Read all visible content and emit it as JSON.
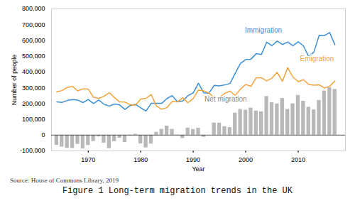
{
  "chart_data": {
    "type": "line",
    "x_label": "Year",
    "y_label": "Number of people",
    "source": "Source: House of Commons Library, 2019",
    "caption": "Figure 1 Long-term migration trends in the UK",
    "x": [
      1964,
      1965,
      1966,
      1967,
      1968,
      1969,
      1970,
      1971,
      1972,
      1973,
      1974,
      1975,
      1976,
      1977,
      1978,
      1979,
      1980,
      1981,
      1982,
      1983,
      1984,
      1985,
      1986,
      1987,
      1988,
      1989,
      1990,
      1991,
      1992,
      1993,
      1994,
      1995,
      1996,
      1997,
      1998,
      1999,
      2000,
      2001,
      2002,
      2003,
      2004,
      2005,
      2006,
      2007,
      2008,
      2009,
      2010,
      2011,
      2012,
      2013,
      2014,
      2015,
      2016,
      2017
    ],
    "series": [
      {
        "name": "Immigration",
        "type": "line",
        "color": "#3d8fd6",
        "values": [
          211000,
          207000,
          219000,
          225000,
          222000,
          206000,
          226000,
          200000,
          222000,
          196000,
          184000,
          197000,
          191000,
          163000,
          187000,
          195000,
          173000,
          153000,
          201000,
          202000,
          201000,
          232000,
          250000,
          212000,
          216000,
          250000,
          267000,
          329000,
          268000,
          266000,
          315000,
          312000,
          318000,
          327000,
          391000,
          454000,
          479000,
          481000,
          516000,
          511000,
          589000,
          567000,
          596000,
          574000,
          590000,
          567000,
          591000,
          566000,
          498000,
          526000,
          632000,
          631000,
          650000,
          572000
        ]
      },
      {
        "name": "Emigration",
        "type": "line",
        "color": "#f2a33a",
        "values": [
          275000,
          282000,
          302000,
          309000,
          280000,
          293000,
          291000,
          240000,
          233000,
          246000,
          269000,
          238000,
          210000,
          209000,
          192000,
          189000,
          228000,
          233000,
          257000,
          184000,
          164000,
          174000,
          213000,
          210000,
          237000,
          205000,
          231000,
          285000,
          281000,
          266000,
          238000,
          236000,
          264000,
          279000,
          251000,
          291000,
          321000,
          309000,
          363000,
          363000,
          344000,
          361000,
          398000,
          341000,
          427000,
          368000,
          339000,
          351000,
          321000,
          316000,
          319000,
          299000,
          309000,
          343000
        ]
      },
      {
        "name": "Net migration",
        "type": "bar",
        "color": "#b8b8b8",
        "values": [
          -64000,
          -75000,
          -83000,
          -84000,
          -58000,
          -87000,
          -65000,
          -40000,
          -11000,
          -50000,
          -85000,
          -41000,
          -19000,
          -46000,
          -5000,
          6000,
          -55000,
          -80000,
          -56000,
          18000,
          37000,
          58000,
          37000,
          2000,
          -21000,
          45000,
          36000,
          44000,
          -13000,
          0,
          77000,
          76000,
          54000,
          48000,
          140000,
          163000,
          158000,
          172000,
          153000,
          148000,
          245000,
          206000,
          198000,
          233000,
          163000,
          199000,
          252000,
          215000,
          177000,
          160000,
          220000,
          280000,
          300000,
          290000
        ]
      }
    ],
    "xlim": [
      1963,
      2019
    ],
    "xticks": [
      1970,
      1980,
      1990,
      2000,
      2010
    ],
    "ylim": [
      -100000,
      800000
    ],
    "yticks": [
      {
        "value": -100000,
        "label": "-100,000"
      },
      0,
      {
        "value": 100000,
        "label": "100,000"
      },
      {
        "value": 200000,
        "label": "200,000"
      },
      {
        "value": 300000,
        "label": "300,000"
      },
      {
        "value": 400000,
        "label": "400,000"
      },
      {
        "value": 500000,
        "label": "500,000"
      },
      {
        "value": 600000,
        "label": "600,000"
      },
      {
        "value": 700000,
        "label": "700,000"
      },
      {
        "value": 800000,
        "label": "800,000"
      }
    ],
    "grid": false
  }
}
